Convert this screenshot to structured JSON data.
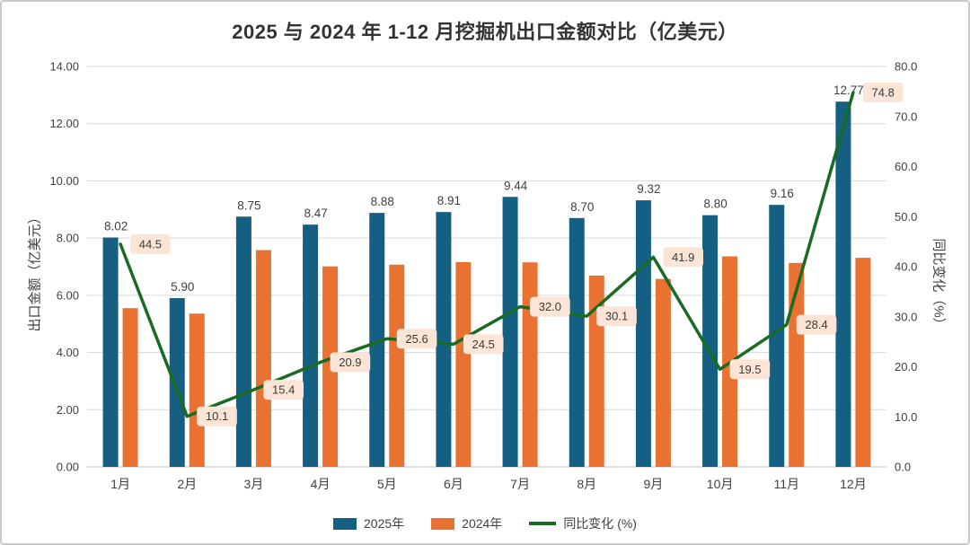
{
  "chart_data": {
    "type": "combo",
    "title": "2025 与 2024 年 1-12 月挖掘机出口金额对比（亿美元）",
    "categories": [
      "1月",
      "2月",
      "3月",
      "4月",
      "5月",
      "6月",
      "7月",
      "8月",
      "9月",
      "10月",
      "11月",
      "12月"
    ],
    "series": [
      {
        "name": "2025年",
        "type": "bar",
        "axis": "left",
        "color": "#156082",
        "show_labels": true,
        "label_decimals": 2,
        "values": [
          8.02,
          5.9,
          8.75,
          8.47,
          8.88,
          8.91,
          9.44,
          8.7,
          9.32,
          8.8,
          9.16,
          12.77
        ]
      },
      {
        "name": "2024年",
        "type": "bar",
        "axis": "left",
        "color": "#e97132",
        "show_labels": false,
        "label_decimals": 2,
        "values": [
          5.55,
          5.36,
          7.58,
          7.01,
          7.07,
          7.16,
          7.15,
          6.69,
          6.57,
          7.36,
          7.13,
          7.31
        ]
      },
      {
        "name": "同比变化 (%)",
        "type": "line",
        "axis": "right",
        "color": "#196b24",
        "show_labels": true,
        "label_decimals": 1,
        "label_bg": "#fce4d6",
        "values": [
          44.5,
          10.1,
          15.4,
          20.9,
          25.6,
          24.5,
          32.0,
          30.1,
          41.9,
          19.5,
          28.4,
          74.8
        ]
      }
    ],
    "left_axis": {
      "title": "出口金额（亿美元）",
      "min": 0,
      "max": 14,
      "step": 2,
      "decimals": 2
    },
    "right_axis": {
      "title": "同比变化（%）",
      "min": 0,
      "max": 80,
      "step": 10,
      "decimals": 1
    },
    "grid": true,
    "legend_position": "bottom",
    "colors": {
      "grid_line": "#d9d9d9",
      "axis_line": "#bfbfbf",
      "tick_text": "#404040",
      "label_text": "#404040"
    }
  }
}
